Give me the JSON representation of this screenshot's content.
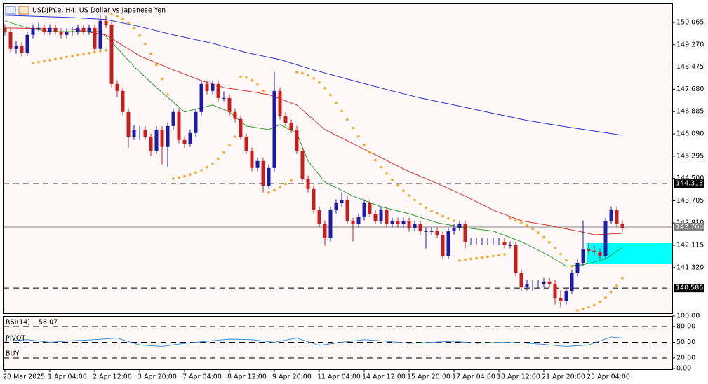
{
  "chart_data": {
    "type": "candlestick",
    "title": "USDJPY.e, H4:  US Dollar vs Japanese Yen",
    "colors": {
      "up": "#1c1ca8",
      "down": "#c81e1e",
      "wick": "#222222"
    },
    "xlim": [
      -0.25,
      118.875
    ],
    "ylim": [
      139.69,
      150.74
    ],
    "yticks": [
      150.065,
      {
        "value": 149.27,
        "label": "149.270"
      },
      148.475,
      {
        "value": 147.68,
        "label": "147.680"
      },
      146.885,
      {
        "value": 146.09,
        "label": "146.090"
      },
      145.295,
      {
        "value": 144.5,
        "label": "144.500"
      },
      143.705,
      {
        "value": 142.91,
        "label": "142.910"
      },
      142.115,
      {
        "value": 141.32,
        "label": "141.320"
      }
    ],
    "xticks": [
      {
        "value": 0,
        "label": "28 Mar 2025"
      },
      {
        "value": 8,
        "label": "1 Apr 04:00"
      },
      {
        "value": 16,
        "label": "2 Apr 12:00"
      },
      {
        "value": 24,
        "label": "3 Apr 20:00"
      },
      {
        "value": 32,
        "label": "7 Apr 04:00"
      },
      {
        "value": 40,
        "label": "8 Apr 12:00"
      },
      {
        "value": 48,
        "label": "9 Apr 20:00"
      },
      {
        "value": 56,
        "label": "11 Apr 04:00"
      },
      {
        "value": 64,
        "label": "14 Apr 12:00"
      },
      {
        "value": 72,
        "label": "15 Apr 20:00"
      },
      {
        "value": 80,
        "label": "17 Apr 04:00"
      },
      {
        "value": 88,
        "label": "18 Apr 12:00"
      },
      {
        "value": 96,
        "label": "21 Apr 20:00"
      },
      {
        "value": 104,
        "label": "23 Apr 04:00"
      }
    ],
    "candles": [
      [
        149.87,
        150.0,
        149.6,
        149.74
      ],
      [
        149.74,
        149.86,
        149.0,
        149.12
      ],
      [
        149.12,
        149.4,
        148.95,
        149.24
      ],
      [
        149.24,
        149.36,
        148.85,
        148.99
      ],
      [
        148.99,
        149.74,
        148.87,
        149.62
      ],
      [
        149.62,
        150.0,
        149.5,
        149.87
      ],
      [
        149.87,
        150.05,
        149.75,
        149.87
      ],
      [
        149.87,
        149.99,
        149.62,
        149.74
      ],
      [
        149.74,
        150.0,
        149.62,
        149.87
      ],
      [
        149.87,
        149.99,
        149.62,
        149.74
      ],
      [
        149.74,
        149.86,
        149.5,
        149.62
      ],
      [
        149.62,
        149.86,
        149.5,
        149.74
      ],
      [
        149.74,
        149.9,
        149.6,
        149.74
      ],
      [
        149.74,
        149.99,
        149.62,
        149.87
      ],
      [
        149.87,
        149.99,
        149.62,
        149.74
      ],
      [
        149.74,
        149.99,
        149.62,
        149.87
      ],
      [
        149.87,
        150.0,
        149.0,
        149.12
      ],
      [
        149.12,
        150.3,
        149.0,
        150.12
      ],
      [
        150.12,
        150.3,
        149.87,
        149.99
      ],
      [
        149.99,
        150.1,
        147.75,
        147.87
      ],
      [
        147.87,
        148.0,
        147.4,
        147.62
      ],
      [
        147.62,
        147.75,
        146.75,
        146.87
      ],
      [
        146.87,
        147.0,
        145.6,
        145.99
      ],
      [
        145.99,
        146.4,
        145.87,
        146.24
      ],
      [
        146.24,
        146.36,
        145.87,
        146.24
      ],
      [
        146.24,
        146.36,
        145.87,
        145.99
      ],
      [
        145.99,
        146.1,
        145.3,
        145.49
      ],
      [
        145.49,
        146.36,
        145.37,
        146.24
      ],
      [
        146.24,
        146.36,
        145.0,
        145.62
      ],
      [
        145.62,
        146.5,
        144.9,
        146.37
      ],
      [
        146.37,
        147.0,
        146.25,
        146.87
      ],
      [
        146.87,
        147.0,
        145.75,
        145.87
      ],
      [
        145.87,
        146.0,
        145.6,
        145.74
      ],
      [
        145.74,
        146.25,
        145.62,
        146.12
      ],
      [
        146.12,
        147.0,
        145.99,
        146.87
      ],
      [
        146.87,
        148.0,
        146.75,
        147.87
      ],
      [
        147.87,
        148.0,
        147.5,
        147.62
      ],
      [
        147.62,
        148.0,
        147.5,
        147.87
      ],
      [
        147.87,
        148.0,
        147.25,
        147.37
      ],
      [
        147.37,
        147.6,
        147.25,
        147.37
      ],
      [
        147.37,
        147.5,
        146.75,
        146.87
      ],
      [
        146.87,
        147.0,
        146.5,
        146.62
      ],
      [
        146.62,
        146.75,
        145.87,
        145.99
      ],
      [
        145.99,
        146.1,
        145.37,
        145.49
      ],
      [
        145.49,
        145.6,
        144.75,
        144.87
      ],
      [
        144.87,
        145.25,
        144.75,
        145.12
      ],
      [
        145.12,
        145.25,
        144.0,
        144.24
      ],
      [
        144.24,
        145.0,
        144.12,
        144.87
      ],
      [
        144.87,
        148.3,
        144.75,
        147.62
      ],
      [
        147.62,
        147.75,
        146.6,
        146.74
      ],
      [
        146.74,
        146.87,
        146.37,
        146.49
      ],
      [
        146.49,
        146.6,
        146.12,
        146.24
      ],
      [
        146.24,
        146.37,
        145.37,
        145.49
      ],
      [
        145.49,
        145.6,
        144.37,
        144.49
      ],
      [
        144.49,
        144.6,
        144.0,
        144.12
      ],
      [
        144.12,
        144.25,
        143.25,
        143.37
      ],
      [
        143.37,
        143.5,
        142.75,
        142.87
      ],
      [
        142.87,
        143.0,
        142.1,
        142.37
      ],
      [
        142.37,
        143.5,
        142.25,
        143.37
      ],
      [
        143.37,
        143.75,
        143.25,
        143.62
      ],
      [
        143.62,
        144.0,
        143.5,
        143.74
      ],
      [
        143.74,
        143.87,
        142.87,
        142.99
      ],
      [
        142.99,
        143.1,
        142.25,
        142.87
      ],
      [
        142.87,
        143.25,
        142.75,
        143.12
      ],
      [
        143.12,
        143.75,
        143.0,
        143.62
      ],
      [
        143.62,
        143.75,
        143.12,
        143.24
      ],
      [
        143.24,
        143.37,
        142.87,
        142.99
      ],
      [
        142.99,
        143.5,
        142.87,
        143.37
      ],
      [
        143.37,
        143.5,
        142.75,
        142.87
      ],
      [
        142.87,
        143.1,
        142.75,
        142.99
      ],
      [
        142.99,
        143.1,
        142.75,
        142.87
      ],
      [
        142.87,
        143.1,
        142.75,
        142.99
      ],
      [
        142.99,
        143.1,
        142.6,
        142.74
      ],
      [
        142.74,
        143.0,
        142.62,
        142.87
      ],
      [
        142.87,
        143.0,
        142.5,
        142.62
      ],
      [
        142.62,
        142.75,
        142.0,
        142.62
      ],
      [
        142.62,
        142.75,
        142.5,
        142.62
      ],
      [
        142.62,
        142.75,
        142.37,
        142.49
      ],
      [
        142.49,
        142.6,
        141.62,
        141.74
      ],
      [
        141.74,
        142.75,
        141.62,
        142.62
      ],
      [
        142.62,
        142.87,
        142.5,
        142.74
      ],
      [
        142.74,
        143.0,
        142.62,
        142.87
      ],
      [
        142.87,
        143.0,
        142.0,
        142.24
      ],
      [
        142.24,
        142.37,
        142.12,
        142.24
      ],
      [
        142.24,
        142.37,
        142.12,
        142.24
      ],
      [
        142.24,
        142.37,
        142.12,
        142.24
      ],
      [
        142.24,
        142.37,
        142.12,
        142.24
      ],
      [
        142.24,
        142.37,
        142.12,
        142.24
      ],
      [
        142.24,
        142.37,
        142.12,
        142.24
      ],
      [
        142.24,
        142.37,
        142.0,
        142.12
      ],
      [
        142.12,
        142.25,
        142.0,
        142.12
      ],
      [
        142.12,
        142.25,
        141.0,
        141.12
      ],
      [
        141.12,
        141.25,
        140.5,
        140.62
      ],
      [
        140.62,
        140.87,
        140.5,
        140.74
      ],
      [
        140.74,
        140.87,
        140.5,
        140.74
      ],
      [
        140.74,
        140.87,
        140.6,
        140.74
      ],
      [
        140.74,
        140.95,
        140.6,
        140.82
      ],
      [
        140.82,
        140.95,
        140.6,
        140.74
      ],
      [
        140.74,
        140.87,
        140.0,
        140.24
      ],
      [
        140.24,
        140.5,
        139.9,
        140.12
      ],
      [
        140.12,
        140.6,
        140.0,
        140.49
      ],
      [
        140.49,
        141.25,
        140.37,
        141.12
      ],
      [
        141.12,
        141.62,
        141.0,
        141.49
      ],
      [
        141.49,
        143.0,
        141.37,
        141.99
      ],
      [
        141.99,
        142.2,
        141.8,
        141.92
      ],
      [
        141.92,
        142.1,
        141.75,
        141.87
      ],
      [
        141.87,
        142.0,
        141.6,
        141.74
      ],
      [
        141.74,
        143.1,
        141.62,
        142.99
      ],
      [
        142.99,
        143.5,
        142.87,
        143.37
      ],
      [
        143.37,
        143.5,
        142.75,
        142.87
      ],
      [
        142.87,
        143.0,
        142.6,
        142.74
      ]
    ],
    "lines": [
      {
        "color": "#2e9e2e",
        "x": [
          0,
          4,
          8,
          12,
          17,
          19,
          23,
          27,
          32,
          37,
          40,
          43,
          47,
          49,
          52,
          54,
          57,
          62,
          67,
          72,
          77,
          82,
          87,
          92,
          97,
          100,
          103,
          107,
          110
        ],
        "values": [
          150.12,
          149.87,
          149.74,
          149.74,
          149.74,
          149.37,
          148.49,
          147.74,
          146.87,
          147.12,
          146.87,
          146.37,
          146.24,
          146.42,
          146.12,
          145.12,
          144.37,
          143.87,
          143.49,
          143.24,
          142.92,
          142.74,
          142.62,
          142.24,
          141.74,
          141.37,
          141.42,
          141.62,
          142.04
        ]
      },
      {
        "color": "#d9342b",
        "x": [
          0,
          12,
          18,
          24,
          30,
          35,
          39,
          43,
          47,
          52,
          57,
          62,
          67,
          72,
          77,
          82,
          87,
          92,
          97,
          102,
          105,
          110
        ],
        "values": [
          149.87,
          149.82,
          149.62,
          148.87,
          148.37,
          147.99,
          147.74,
          147.62,
          147.49,
          147.12,
          146.24,
          145.74,
          145.24,
          144.74,
          144.32,
          143.87,
          143.37,
          142.99,
          142.82,
          142.62,
          142.49,
          142.54
        ]
      },
      {
        "color": "#2233cc",
        "x": [
          0,
          12,
          18,
          24,
          30,
          37,
          43,
          49,
          55,
          62,
          68,
          74,
          80,
          87,
          93,
          99,
          105,
          110
        ],
        "values": [
          150.32,
          150.24,
          150.17,
          149.92,
          149.62,
          149.32,
          148.99,
          148.74,
          148.37,
          147.99,
          147.67,
          147.37,
          147.12,
          146.82,
          146.57,
          146.37,
          146.19,
          146.04
        ]
      }
    ],
    "sar": {
      "color": "#f5a623",
      "values": [
        null,
        null,
        null,
        null,
        null,
        148.62,
        148.65,
        148.69,
        148.72,
        148.76,
        148.79,
        148.83,
        148.86,
        148.9,
        148.93,
        148.97,
        149.0,
        149.04,
        149.07,
        150.37,
        150.3,
        150.2,
        150.05,
        149.85,
        149.6,
        149.3,
        148.95,
        148.55,
        148.05,
        147.49,
        144.49,
        144.53,
        144.58,
        144.64,
        144.71,
        144.79,
        144.9,
        145.03,
        145.2,
        145.42,
        145.68,
        145.99,
        148.12,
        148.1,
        148.0,
        147.85,
        147.62,
        144.0,
        144.08,
        144.18,
        144.3,
        144.42,
        148.29,
        148.25,
        148.18,
        148.07,
        147.92,
        147.72,
        147.48,
        147.2,
        146.9,
        146.6,
        146.3,
        146.0,
        145.7,
        145.42,
        145.15,
        144.9,
        144.67,
        144.45,
        144.25,
        144.06,
        143.89,
        143.73,
        143.59,
        143.46,
        143.35,
        143.25,
        143.16,
        143.07,
        142.99,
        141.57,
        141.6,
        141.63,
        141.65,
        141.68,
        141.7,
        141.73,
        141.76,
        141.79,
        143.07,
        143.0,
        142.92,
        142.82,
        142.7,
        142.56,
        142.4,
        142.22,
        142.02,
        141.8,
        141.58,
        141.37,
        139.79,
        139.84,
        139.9,
        139.98,
        140.1,
        140.25,
        140.45,
        140.68,
        140.94
      ]
    },
    "levels": [
      {
        "value": 144.313,
        "style": "dashed",
        "color": "#000000"
      },
      {
        "value": 142.765,
        "style": "solid",
        "color": "#808080"
      },
      {
        "value": 140.586,
        "style": "dashed",
        "color": "#000000"
      }
    ],
    "zone": {
      "x": 103.6,
      "values": [
        141.44,
        142.19
      ],
      "color": "#00ffff"
    },
    "rsi": {
      "label": "RSI(14)",
      "value": 58.07,
      "color": "#3a8fd8",
      "texts": [
        "PIVOT",
        "BUY"
      ],
      "ylim": [
        0,
        100
      ],
      "yticks": [
        {
          "value": 100,
          "label": "100.00"
        },
        {
          "value": 80,
          "label": "80.00"
        },
        {
          "value": 50,
          "label": "50.00"
        },
        {
          "value": 20,
          "label": "20.00"
        },
        {
          "value": 0,
          "label": "0.00"
        }
      ],
      "x": [
        0,
        4,
        8,
        12,
        16,
        20,
        24,
        28,
        32,
        36,
        40,
        44,
        48,
        52,
        56,
        60,
        64,
        68,
        72,
        76,
        80,
        84,
        88,
        92,
        96,
        100,
        104,
        108,
        110
      ],
      "values": [
        52,
        55,
        50,
        53,
        55,
        58,
        45,
        42,
        48,
        52,
        56,
        55,
        50,
        58,
        44,
        50,
        55,
        52,
        48,
        50,
        52,
        48,
        50,
        49,
        46,
        42,
        45,
        60,
        58.07
      ]
    }
  }
}
